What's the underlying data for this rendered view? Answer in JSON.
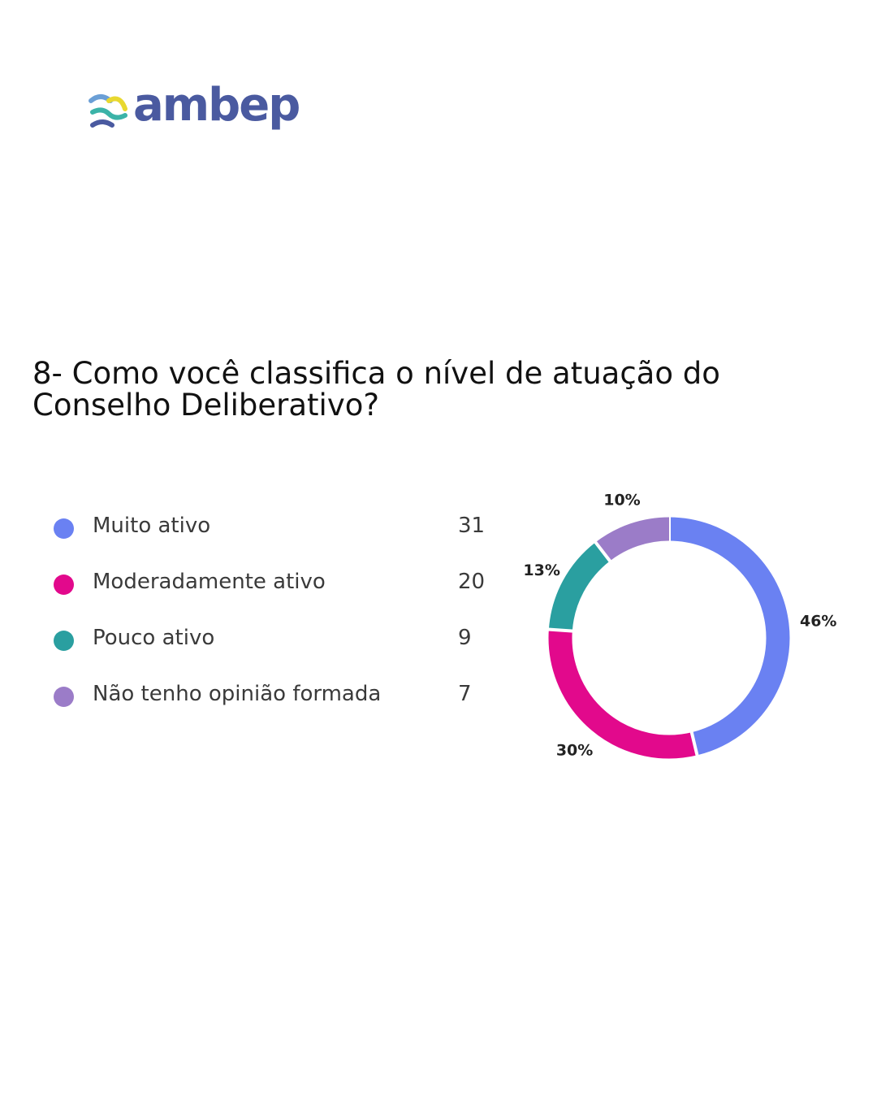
{
  "brand": {
    "name": "ambep",
    "colors": {
      "primary": "#4a5aa0",
      "teal": "#3bb3a8",
      "yellow": "#e8d830",
      "blue": "#6b9fd6"
    }
  },
  "question": {
    "line1": "8- Como você classifica o nível de atuação do",
    "line2": "Conselho Deliberativo?"
  },
  "chart_data": {
    "type": "pie",
    "variant": "donut",
    "categories": [
      "Muito ativo",
      "Moderadamente ativo",
      "Pouco ativo",
      "Não tenho opinião formada"
    ],
    "values": [
      31,
      20,
      9,
      7
    ],
    "value_labels": [
      "31",
      "20",
      "9",
      "7"
    ],
    "percent_labels": [
      "46%",
      "30%",
      "13%",
      "10%"
    ],
    "colors": [
      "#6a81f2",
      "#e2098c",
      "#2a9fa0",
      "#9b7cc8"
    ],
    "legend_position": "left"
  }
}
